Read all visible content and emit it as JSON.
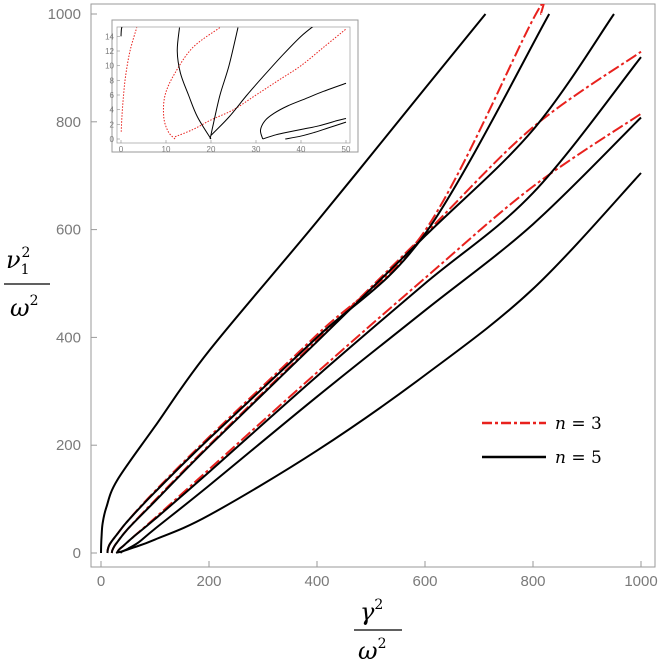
{
  "chart_data": [
    {
      "type": "line",
      "ylabel": {
        "numerator": "ν",
        "sub": "1",
        "sup": "2",
        "denominator": "ω",
        "denominator_sup": "2"
      },
      "xlabel": {
        "numerator": "γ",
        "sup": "2",
        "denominator": "ω",
        "denominator_sup": "2"
      },
      "xlim": [
        0,
        1000
      ],
      "ylim": [
        0,
        1000
      ],
      "xticks": [
        "0",
        "200",
        "400",
        "600",
        "800",
        "1000"
      ],
      "yticks": [
        "0",
        "200",
        "400",
        "600",
        "800",
        "1000"
      ],
      "grid": false,
      "legend_position": "right",
      "legend": [
        {
          "var": "n",
          "eq": " = 3",
          "color": "#e8211d",
          "dash": "dash-dot"
        },
        {
          "var": "n",
          "eq": " = 5",
          "color": "#000000",
          "dash": "solid"
        }
      ],
      "series": [
        {
          "legend_index": 0,
          "color": "#e8211d",
          "dash": "dash-dot",
          "x": [
            12,
            12.5,
            15,
            20,
            30,
            50,
            100,
            200,
            400,
            600,
            800,
            815
          ],
          "y": [
            0,
            6,
            14,
            22,
            35,
            60,
            115,
            215,
            405,
            598,
            990,
            1000
          ]
        },
        {
          "legend_index": 0,
          "color": "#e8211d",
          "dash": "dash-dot",
          "x": [
            20,
            21,
            25,
            30,
            50,
            100,
            200,
            400,
            600,
            800,
            1000
          ],
          "y": [
            0,
            5,
            13,
            20,
            45,
            98,
            200,
            395,
            592,
            790,
            930
          ]
        },
        {
          "legend_index": 0,
          "color": "#e8211d",
          "dash": "dash-dot",
          "x": [
            30,
            31,
            35,
            40,
            60,
            100,
            200,
            400,
            600,
            800,
            1000
          ],
          "y": [
            0,
            3,
            8,
            12,
            30,
            65,
            155,
            335,
            510,
            680,
            815
          ]
        },
        {
          "legend_index": 1,
          "color": "#000000",
          "dash": "solid",
          "x": [
            0,
            0.3,
            1,
            3,
            10,
            30,
            100,
            200,
            400,
            600,
            712
          ],
          "y": [
            0,
            15,
            30,
            55,
            85,
            135,
            235,
            375,
            615,
            862,
            1000
          ]
        },
        {
          "legend_index": 1,
          "color": "#000000",
          "dash": "solid",
          "x": [
            12,
            12.5,
            15,
            20,
            30,
            50,
            100,
            200,
            400,
            600,
            830
          ],
          "y": [
            0,
            6,
            14,
            22,
            35,
            60,
            113,
            212,
            400,
            592,
            1000
          ]
        },
        {
          "legend_index": 1,
          "color": "#000000",
          "dash": "solid",
          "x": [
            20,
            21,
            25,
            30,
            50,
            100,
            200,
            400,
            600,
            800,
            950
          ],
          "y": [
            0,
            5,
            13,
            20,
            45,
            96,
            198,
            392,
            588,
            785,
            1000
          ]
        },
        {
          "legend_index": 1,
          "color": "#000000",
          "dash": "solid",
          "x": [
            30,
            31,
            35,
            40,
            60,
            100,
            200,
            400,
            600,
            800,
            1000
          ],
          "y": [
            0,
            3,
            8,
            12,
            30,
            63,
            150,
            328,
            500,
            668,
            920
          ]
        },
        {
          "legend_index": 1,
          "color": "#000000",
          "dash": "solid",
          "x": [
            36,
            38,
            42,
            50,
            70,
            100,
            200,
            400,
            600,
            800,
            1000
          ],
          "y": [
            0,
            2,
            4,
            8,
            20,
            45,
            125,
            290,
            450,
            610,
            808
          ]
        },
        {
          "legend_index": 1,
          "color": "#000000",
          "dash": "solid",
          "x": [
            28,
            30,
            35,
            45,
            60,
            100,
            200,
            400,
            600,
            800,
            1000
          ],
          "y": [
            0,
            1,
            2,
            5,
            10,
            25,
            70,
            190,
            330,
            490,
            705
          ]
        }
      ]
    },
    {
      "type": "line",
      "xlim": [
        0,
        50
      ],
      "ylim": [
        0,
        15
      ],
      "xticks": [
        "0",
        "10",
        "20",
        "30",
        "40",
        "50"
      ],
      "yticks": [
        "0",
        "2",
        "4",
        "6",
        "8",
        "10",
        "12",
        "14"
      ],
      "grid": false,
      "series": [
        {
          "color": "#e8211d",
          "dash": "dotted",
          "x": [
            0.05,
            0.2,
            0.5,
            1,
            2,
            3.5
          ],
          "y": [
            1,
            3,
            5.5,
            8.5,
            12,
            15.2
          ]
        },
        {
          "color": "#e8211d",
          "dash": "dotted",
          "x": [
            12,
            10.5,
            9.5,
            9.8,
            12,
            16,
            22
          ],
          "y": [
            0,
            1,
            3,
            6,
            9,
            12.5,
            15.2
          ]
        },
        {
          "color": "#e8211d",
          "dash": "dotted",
          "x": [
            12,
            16,
            20,
            25,
            30,
            35,
            40,
            45,
            50
          ],
          "y": [
            0.3,
            1.3,
            2.6,
            4,
            6,
            8,
            10,
            12.5,
            15
          ]
        },
        {
          "color": "#000000",
          "dash": "solid",
          "x": [
            0,
            0.1,
            0.4,
            0.8
          ],
          "y": [
            14,
            15,
            15.5,
            15.5
          ]
        },
        {
          "color": "#000000",
          "dash": "solid",
          "x": [
            13,
            12.5,
            13.2,
            15,
            17,
            20
          ],
          "y": [
            15.2,
            12,
            9,
            6,
            3,
            0
          ]
        },
        {
          "color": "#000000",
          "dash": "solid",
          "x": [
            26,
            24,
            22,
            20.5,
            19.8
          ],
          "y": [
            15.2,
            10,
            6,
            2,
            0
          ]
        },
        {
          "color": "#000000",
          "dash": "solid",
          "x": [
            20,
            24,
            28,
            32,
            36,
            40,
            43
          ],
          "y": [
            0.5,
            3,
            6,
            8.8,
            11.5,
            14,
            15.5
          ]
        },
        {
          "color": "#000000",
          "dash": "solid",
          "x": [
            31.5,
            31,
            32,
            34,
            37,
            41,
            45,
            50
          ],
          "y": [
            0,
            1.2,
            2.5,
            3.5,
            4.5,
            5.5,
            6.5,
            7.6
          ]
        },
        {
          "color": "#000000",
          "dash": "solid",
          "x": [
            31.5,
            34,
            36,
            40,
            44,
            48,
            50
          ],
          "y": [
            0,
            0.5,
            0.8,
            1.3,
            1.8,
            2.5,
            2.8
          ]
        },
        {
          "color": "#000000",
          "dash": "solid",
          "x": [
            36.5,
            40,
            43,
            46,
            50
          ],
          "y": [
            0,
            0.4,
            0.9,
            1.5,
            2.3
          ]
        }
      ]
    }
  ]
}
